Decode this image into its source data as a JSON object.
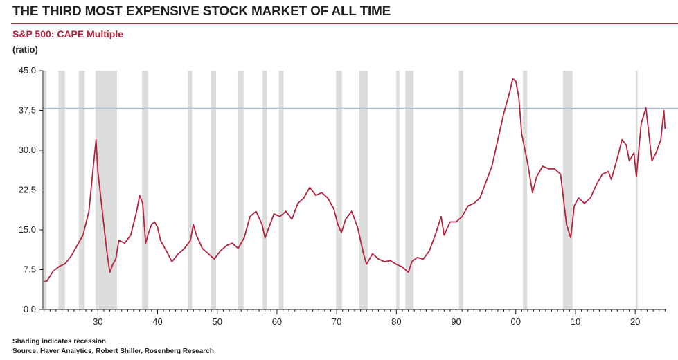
{
  "header": {
    "title": "THE THIRD MOST EXPENSIVE STOCK MARKET OF ALL TIME",
    "subtitle": "S&P 500: CAPE Multiple",
    "unit_label": "(ratio)"
  },
  "footer": {
    "note": "Shading indicates recession",
    "source": "Source: Haver Analytics, Robert Shiller, Rosenberg Research"
  },
  "colors": {
    "line": "#b3243e",
    "reference_line": "#a9bfd6",
    "recession": "#dcdcdc",
    "axis": "#231f20"
  },
  "chart_data": {
    "type": "line",
    "title": "S&P 500: CAPE Multiple",
    "ylabel": "(ratio)",
    "xlabel": "",
    "xlim": [
      1920.8,
      2025.2
    ],
    "ylim": [
      0,
      45
    ],
    "y_ticks": [
      0,
      7.5,
      15,
      22.5,
      30,
      37.5,
      45
    ],
    "y_tick_labels": [
      "0.0",
      "7.5",
      "15.0",
      "22.5",
      "30.0",
      "37.5",
      "45.0"
    ],
    "x_ticks": [
      1930,
      1940,
      1950,
      1960,
      1970,
      1980,
      1990,
      2000,
      2010,
      2020
    ],
    "x_tick_labels": [
      "30",
      "40",
      "50",
      "60",
      "70",
      "80",
      "90",
      "00",
      "10",
      "20"
    ],
    "reference_line": {
      "y": 37.9
    },
    "recessions": [
      [
        1920.9,
        1921.4
      ],
      [
        1923.4,
        1924.5
      ],
      [
        1926.8,
        1927.8
      ],
      [
        1929.6,
        1933.2
      ],
      [
        1937.4,
        1938.4
      ],
      [
        1945.1,
        1945.8
      ],
      [
        1948.9,
        1949.8
      ],
      [
        1953.5,
        1954.4
      ],
      [
        1957.6,
        1958.3
      ],
      [
        1960.3,
        1961.1
      ],
      [
        1969.9,
        1970.9
      ],
      [
        1973.8,
        1975.2
      ],
      [
        1980.0,
        1980.5
      ],
      [
        1981.5,
        1982.9
      ],
      [
        1990.5,
        1991.2
      ],
      [
        2001.2,
        2001.9
      ],
      [
        2007.9,
        2009.5
      ],
      [
        2020.1,
        2020.4
      ]
    ],
    "series": [
      {
        "name": "S&P 500 CAPE",
        "x": [
          1921.0,
          1921.5,
          1922.5,
          1923.5,
          1924.5,
          1925.5,
          1926.5,
          1927.5,
          1928.5,
          1929.2,
          1929.7,
          1930.0,
          1930.5,
          1931.0,
          1931.5,
          1932.0,
          1932.5,
          1933.0,
          1933.5,
          1934.5,
          1935.5,
          1936.5,
          1937.0,
          1937.5,
          1938.0,
          1938.5,
          1939.0,
          1939.5,
          1940.0,
          1940.5,
          1941.5,
          1942.4,
          1943.5,
          1944.5,
          1945.5,
          1946.0,
          1946.5,
          1947.5,
          1948.5,
          1949.5,
          1950.5,
          1951.5,
          1952.5,
          1953.5,
          1954.5,
          1955.5,
          1956.5,
          1957.5,
          1958.0,
          1958.5,
          1959.5,
          1960.5,
          1961.5,
          1962.5,
          1963.5,
          1964.5,
          1965.5,
          1966.5,
          1967.5,
          1968.5,
          1969.5,
          1970.2,
          1970.8,
          1971.5,
          1972.5,
          1973.5,
          1974.5,
          1975.0,
          1976.0,
          1977.0,
          1978.0,
          1979.0,
          1980.0,
          1981.0,
          1982.0,
          1982.6,
          1983.5,
          1984.5,
          1985.5,
          1986.5,
          1987.5,
          1988.0,
          1989.0,
          1990.0,
          1991.0,
          1992.0,
          1993.0,
          1994.0,
          1995.0,
          1996.0,
          1997.0,
          1998.0,
          1999.0,
          1999.5,
          2000.0,
          2000.5,
          2001.0,
          2002.0,
          2002.8,
          2003.5,
          2004.5,
          2005.5,
          2006.5,
          2007.5,
          2008.5,
          2009.2,
          2009.8,
          2010.5,
          2011.5,
          2012.5,
          2013.5,
          2014.5,
          2015.5,
          2016.0,
          2017.0,
          2017.8,
          2018.5,
          2019.0,
          2019.8,
          2020.2,
          2020.6,
          2021.0,
          2021.8,
          2022.2,
          2022.8,
          2023.5,
          2024.3,
          2024.8,
          2025.0
        ],
        "values": [
          5.2,
          5.4,
          7.2,
          8.1,
          8.6,
          10.0,
          12.0,
          14.0,
          18.5,
          26.5,
          32.0,
          26.0,
          21.0,
          16.0,
          11.0,
          7.0,
          8.5,
          9.5,
          13.0,
          12.5,
          14.0,
          18.5,
          21.5,
          20.0,
          12.5,
          14.5,
          16.0,
          16.5,
          15.5,
          13.0,
          11.0,
          9.0,
          10.5,
          11.5,
          13.0,
          16.0,
          14.0,
          11.5,
          10.5,
          9.5,
          11.0,
          12.0,
          12.5,
          11.5,
          13.5,
          17.5,
          18.5,
          16.0,
          13.5,
          15.0,
          18.0,
          17.5,
          18.5,
          17.0,
          20.0,
          21.0,
          23.0,
          21.5,
          22.0,
          21.0,
          19.0,
          16.0,
          14.5,
          17.0,
          18.5,
          15.5,
          10.5,
          8.5,
          10.5,
          9.5,
          9.0,
          9.2,
          8.5,
          8.0,
          7.0,
          9.0,
          9.8,
          9.5,
          11.0,
          14.0,
          17.5,
          14.0,
          16.5,
          16.5,
          17.5,
          19.5,
          20.0,
          21.0,
          24.0,
          27.0,
          32.0,
          37.0,
          41.0,
          43.5,
          43.0,
          40.0,
          33.0,
          27.5,
          22.0,
          25.0,
          27.0,
          26.5,
          26.5,
          25.5,
          16.0,
          13.5,
          19.5,
          21.0,
          20.0,
          21.0,
          23.5,
          25.5,
          26.0,
          24.5,
          28.5,
          32.0,
          31.0,
          28.0,
          29.5,
          25.0,
          30.0,
          35.0,
          38.0,
          34.0,
          28.0,
          29.5,
          32.0,
          37.5,
          34.0
        ]
      }
    ]
  }
}
